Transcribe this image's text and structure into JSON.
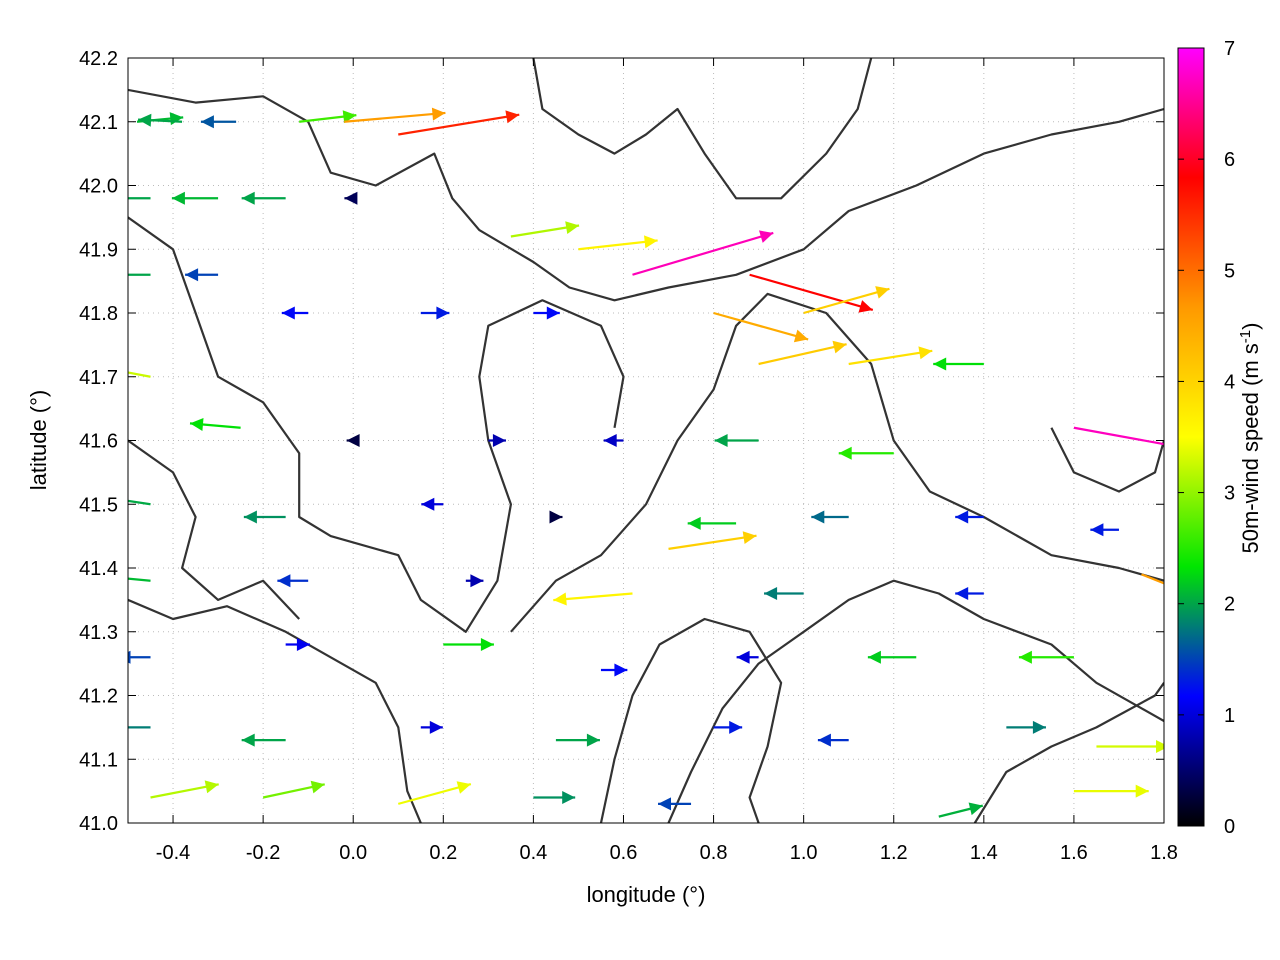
{
  "chart_data": {
    "type": "vector-field",
    "xlabel": "longitude (°)",
    "ylabel": "latitude (°)",
    "xlim": [
      -0.5,
      1.8
    ],
    "ylim": [
      41.0,
      42.2
    ],
    "xticks": [
      -0.4,
      -0.2,
      0.0,
      0.2,
      0.4,
      0.6,
      0.8,
      1.0,
      1.2,
      1.4,
      1.6,
      1.8
    ],
    "xtick_labels": [
      "-0.4",
      "-0.2",
      "0.0",
      "0.2",
      "0.4",
      "0.6",
      "0.8",
      "1.0",
      "1.2",
      "1.4",
      "1.6",
      "1.8"
    ],
    "yticks": [
      41.0,
      41.1,
      41.2,
      41.3,
      41.4,
      41.5,
      41.6,
      41.7,
      41.8,
      41.9,
      42.0,
      42.1,
      42.2
    ],
    "ytick_labels": [
      "41.0",
      "41.1",
      "41.2",
      "41.3",
      "41.4",
      "41.5",
      "41.6",
      "41.7",
      "41.8",
      "41.9",
      "42.0",
      "42.1",
      "42.2"
    ],
    "grid": true,
    "colorbar": {
      "label_main": "50m-wind speed (m s",
      "label_sup": "-1",
      "label_end": ")",
      "range": [
        0,
        7
      ],
      "ticks": [
        0,
        1,
        2,
        3,
        4,
        5,
        6,
        7
      ],
      "tick_labels": [
        "0",
        "1",
        "2",
        "3",
        "4",
        "5",
        "6",
        "7"
      ],
      "colors": [
        "#000000",
        "#0000ff",
        "#00e600",
        "#ffff00",
        "#ff9900",
        "#ff0000",
        "#ff00ff"
      ]
    },
    "contour_color": "#333333",
    "wind_vectors": [
      {
        "lon": -0.48,
        "lat": 42.1,
        "u": 2.1,
        "v": 0.2
      },
      {
        "lon": -0.38,
        "lat": 42.1,
        "u": -2.0,
        "v": 0.1
      },
      {
        "lon": -0.26,
        "lat": 42.1,
        "u": -1.6,
        "v": 0.0
      },
      {
        "lon": -0.12,
        "lat": 42.1,
        "u": 2.6,
        "v": 0.3
      },
      {
        "lon": -0.02,
        "lat": 42.1,
        "u": 4.6,
        "v": 0.4
      },
      {
        "lon": 0.1,
        "lat": 42.08,
        "u": 5.5,
        "v": 0.9
      },
      {
        "lon": -0.45,
        "lat": 41.98,
        "u": -2.0,
        "v": 0.0
      },
      {
        "lon": -0.3,
        "lat": 41.98,
        "u": -2.1,
        "v": 0.0
      },
      {
        "lon": -0.15,
        "lat": 41.98,
        "u": -2.0,
        "v": 0.0
      },
      {
        "lon": 0.0,
        "lat": 41.98,
        "u": -0.4,
        "v": 0.0
      },
      {
        "lon": 0.35,
        "lat": 41.92,
        "u": 3.1,
        "v": 0.5
      },
      {
        "lon": 0.5,
        "lat": 41.9,
        "u": 3.6,
        "v": 0.4
      },
      {
        "lon": 0.62,
        "lat": 41.86,
        "u": 6.4,
        "v": 1.9
      },
      {
        "lon": 0.88,
        "lat": 41.86,
        "u": 5.6,
        "v": -1.6
      },
      {
        "lon": 0.8,
        "lat": 41.8,
        "u": 4.3,
        "v": -1.2
      },
      {
        "lon": 1.0,
        "lat": 41.8,
        "u": 3.9,
        "v": 1.1
      },
      {
        "lon": -0.45,
        "lat": 41.86,
        "u": -2.0,
        "v": 0.0
      },
      {
        "lon": -0.3,
        "lat": 41.86,
        "u": -1.5,
        "v": 0.0
      },
      {
        "lon": -0.1,
        "lat": 41.8,
        "u": -1.2,
        "v": 0.0
      },
      {
        "lon": 0.15,
        "lat": 41.8,
        "u": 1.3,
        "v": 0.0
      },
      {
        "lon": 0.4,
        "lat": 41.8,
        "u": 1.2,
        "v": 0.0
      },
      {
        "lon": 0.9,
        "lat": 41.72,
        "u": 4.0,
        "v": 0.9
      },
      {
        "lon": 1.1,
        "lat": 41.72,
        "u": 3.8,
        "v": 0.6
      },
      {
        "lon": 1.4,
        "lat": 41.72,
        "u": -2.3,
        "v": 0.0
      },
      {
        "lon": 1.6,
        "lat": 41.62,
        "u": 6.6,
        "v": -1.2
      },
      {
        "lon": -0.45,
        "lat": 41.7,
        "u": -3.2,
        "v": 0.6
      },
      {
        "lon": -0.25,
        "lat": 41.62,
        "u": -2.3,
        "v": 0.2
      },
      {
        "lon": 0.0,
        "lat": 41.6,
        "u": -0.3,
        "v": 0.0
      },
      {
        "lon": 0.3,
        "lat": 41.6,
        "u": 0.8,
        "v": 0.0
      },
      {
        "lon": 0.6,
        "lat": 41.6,
        "u": -0.9,
        "v": 0.0
      },
      {
        "lon": 0.9,
        "lat": 41.6,
        "u": -2.0,
        "v": 0.0
      },
      {
        "lon": 1.2,
        "lat": 41.58,
        "u": -2.5,
        "v": 0.0
      },
      {
        "lon": -0.45,
        "lat": 41.5,
        "u": -2.0,
        "v": 0.3
      },
      {
        "lon": -0.15,
        "lat": 41.48,
        "u": -1.9,
        "v": 0.0
      },
      {
        "lon": 0.2,
        "lat": 41.5,
        "u": -1.0,
        "v": 0.0
      },
      {
        "lon": 0.45,
        "lat": 41.48,
        "u": 0.3,
        "v": 0.0
      },
      {
        "lon": 0.7,
        "lat": 41.43,
        "u": 4.0,
        "v": 0.6
      },
      {
        "lon": 0.85,
        "lat": 41.47,
        "u": -2.2,
        "v": 0.0
      },
      {
        "lon": 1.1,
        "lat": 41.48,
        "u": -1.7,
        "v": 0.0
      },
      {
        "lon": 1.4,
        "lat": 41.48,
        "u": -1.3,
        "v": 0.0
      },
      {
        "lon": 1.7,
        "lat": 41.46,
        "u": -1.3,
        "v": 0.0
      },
      {
        "lon": 1.75,
        "lat": 41.39,
        "u": 4.3,
        "v": -1.7
      },
      {
        "lon": -0.45,
        "lat": 41.38,
        "u": -2.1,
        "v": 0.2
      },
      {
        "lon": -0.1,
        "lat": 41.38,
        "u": -1.4,
        "v": 0.0
      },
      {
        "lon": 0.25,
        "lat": 41.38,
        "u": 0.8,
        "v": 0.0
      },
      {
        "lon": 0.62,
        "lat": 41.36,
        "u": -3.6,
        "v": -0.3
      },
      {
        "lon": 1.0,
        "lat": 41.36,
        "u": -1.8,
        "v": 0.0
      },
      {
        "lon": 1.4,
        "lat": 41.36,
        "u": -1.3,
        "v": 0.0
      },
      {
        "lon": -0.45,
        "lat": 41.26,
        "u": -1.5,
        "v": 0.0
      },
      {
        "lon": -0.15,
        "lat": 41.28,
        "u": 1.1,
        "v": 0.0
      },
      {
        "lon": 0.2,
        "lat": 41.28,
        "u": 2.3,
        "v": 0.0
      },
      {
        "lon": 0.55,
        "lat": 41.24,
        "u": 1.2,
        "v": 0.0
      },
      {
        "lon": 0.9,
        "lat": 41.26,
        "u": -1.0,
        "v": 0.0
      },
      {
        "lon": 1.25,
        "lat": 41.26,
        "u": -2.2,
        "v": 0.0
      },
      {
        "lon": 1.6,
        "lat": 41.26,
        "u": -2.5,
        "v": 0.0
      },
      {
        "lon": -0.45,
        "lat": 41.15,
        "u": -1.8,
        "v": 0.0
      },
      {
        "lon": -0.15,
        "lat": 41.13,
        "u": -2.0,
        "v": 0.0
      },
      {
        "lon": 0.15,
        "lat": 41.15,
        "u": 1.0,
        "v": 0.0
      },
      {
        "lon": 0.45,
        "lat": 41.13,
        "u": 2.0,
        "v": 0.0
      },
      {
        "lon": 0.8,
        "lat": 41.15,
        "u": 1.3,
        "v": 0.0
      },
      {
        "lon": 1.1,
        "lat": 41.13,
        "u": -1.4,
        "v": 0.0
      },
      {
        "lon": 1.45,
        "lat": 41.15,
        "u": 1.8,
        "v": 0.0
      },
      {
        "lon": 1.65,
        "lat": 41.12,
        "u": 3.3,
        "v": 0.0
      },
      {
        "lon": -0.45,
        "lat": 41.04,
        "u": 3.1,
        "v": 0.6
      },
      {
        "lon": -0.2,
        "lat": 41.04,
        "u": 2.8,
        "v": 0.6
      },
      {
        "lon": 0.1,
        "lat": 41.03,
        "u": 3.3,
        "v": 0.9
      },
      {
        "lon": 0.4,
        "lat": 41.04,
        "u": 1.9,
        "v": 0.0
      },
      {
        "lon": 0.75,
        "lat": 41.03,
        "u": -1.5,
        "v": 0.0
      },
      {
        "lon": 1.3,
        "lat": 41.01,
        "u": 2.0,
        "v": 0.5
      },
      {
        "lon": 1.6,
        "lat": 41.05,
        "u": 3.4,
        "v": 0.0
      }
    ],
    "contours": [
      [
        [
          -0.5,
          42.15
        ],
        [
          -0.35,
          42.13
        ],
        [
          -0.2,
          42.14
        ],
        [
          -0.1,
          42.1
        ],
        [
          -0.05,
          42.02
        ],
        [
          0.05,
          42.0
        ],
        [
          0.18,
          42.05
        ],
        [
          0.22,
          41.98
        ],
        [
          0.28,
          41.93
        ],
        [
          0.4,
          41.88
        ],
        [
          0.48,
          41.84
        ],
        [
          0.58,
          41.82
        ],
        [
          0.7,
          41.84
        ],
        [
          0.85,
          41.86
        ],
        [
          1.0,
          41.9
        ],
        [
          1.1,
          41.96
        ],
        [
          1.25,
          42.0
        ],
        [
          1.4,
          42.05
        ],
        [
          1.55,
          42.08
        ],
        [
          1.7,
          42.1
        ],
        [
          1.8,
          42.12
        ]
      ],
      [
        [
          -0.5,
          41.95
        ],
        [
          -0.4,
          41.9
        ],
        [
          -0.35,
          41.8
        ],
        [
          -0.3,
          41.7
        ],
        [
          -0.2,
          41.66
        ],
        [
          -0.12,
          41.58
        ],
        [
          -0.12,
          41.48
        ],
        [
          -0.05,
          41.45
        ],
        [
          0.1,
          41.42
        ],
        [
          0.15,
          41.35
        ],
        [
          0.25,
          41.3
        ],
        [
          0.32,
          41.38
        ],
        [
          0.35,
          41.5
        ],
        [
          0.3,
          41.6
        ],
        [
          0.28,
          41.7
        ],
        [
          0.3,
          41.78
        ],
        [
          0.42,
          41.82
        ],
        [
          0.55,
          41.78
        ],
        [
          0.6,
          41.7
        ],
        [
          0.58,
          41.62
        ]
      ],
      [
        [
          0.35,
          41.3
        ],
        [
          0.45,
          41.38
        ],
        [
          0.55,
          41.42
        ],
        [
          0.65,
          41.5
        ],
        [
          0.72,
          41.6
        ],
        [
          0.8,
          41.68
        ],
        [
          0.85,
          41.78
        ],
        [
          0.92,
          41.83
        ],
        [
          1.05,
          41.8
        ],
        [
          1.15,
          41.72
        ],
        [
          1.2,
          41.6
        ],
        [
          1.28,
          41.52
        ],
        [
          1.4,
          41.48
        ],
        [
          1.55,
          41.42
        ],
        [
          1.7,
          41.4
        ],
        [
          1.8,
          41.38
        ]
      ],
      [
        [
          0.55,
          41.0
        ],
        [
          0.58,
          41.1
        ],
        [
          0.62,
          41.2
        ],
        [
          0.68,
          41.28
        ],
        [
          0.78,
          41.32
        ],
        [
          0.88,
          41.3
        ],
        [
          0.95,
          41.22
        ],
        [
          0.92,
          41.12
        ],
        [
          0.88,
          41.04
        ],
        [
          0.9,
          41.0
        ]
      ],
      [
        [
          0.7,
          41.0
        ],
        [
          0.75,
          41.08
        ],
        [
          0.82,
          41.18
        ],
        [
          0.9,
          41.25
        ],
        [
          1.0,
          41.3
        ],
        [
          1.1,
          41.35
        ],
        [
          1.2,
          41.38
        ],
        [
          1.3,
          41.36
        ],
        [
          1.4,
          41.32
        ],
        [
          1.55,
          41.28
        ],
        [
          1.65,
          41.22
        ],
        [
          1.75,
          41.18
        ],
        [
          1.8,
          41.16
        ]
      ],
      [
        [
          -0.5,
          41.35
        ],
        [
          -0.4,
          41.32
        ],
        [
          -0.28,
          41.34
        ],
        [
          -0.15,
          41.3
        ],
        [
          -0.05,
          41.26
        ],
        [
          0.05,
          41.22
        ],
        [
          0.1,
          41.15
        ],
        [
          0.12,
          41.05
        ],
        [
          0.15,
          41.0
        ]
      ],
      [
        [
          -0.5,
          41.6
        ],
        [
          -0.4,
          41.55
        ],
        [
          -0.35,
          41.48
        ],
        [
          -0.38,
          41.4
        ],
        [
          -0.3,
          41.35
        ],
        [
          -0.2,
          41.38
        ],
        [
          -0.12,
          41.32
        ]
      ],
      [
        [
          1.38,
          41.0
        ],
        [
          1.45,
          41.08
        ],
        [
          1.55,
          41.12
        ],
        [
          1.65,
          41.15
        ],
        [
          1.78,
          41.2
        ],
        [
          1.8,
          41.22
        ]
      ],
      [
        [
          0.4,
          42.2
        ],
        [
          0.42,
          42.12
        ],
        [
          0.5,
          42.08
        ],
        [
          0.58,
          42.05
        ],
        [
          0.65,
          42.08
        ],
        [
          0.72,
          42.12
        ],
        [
          0.78,
          42.05
        ],
        [
          0.85,
          41.98
        ],
        [
          0.95,
          41.98
        ],
        [
          1.05,
          42.05
        ],
        [
          1.12,
          42.12
        ],
        [
          1.15,
          42.2
        ]
      ],
      [
        [
          1.55,
          41.62
        ],
        [
          1.6,
          41.55
        ],
        [
          1.7,
          41.52
        ],
        [
          1.78,
          41.55
        ],
        [
          1.8,
          41.6
        ]
      ]
    ]
  }
}
